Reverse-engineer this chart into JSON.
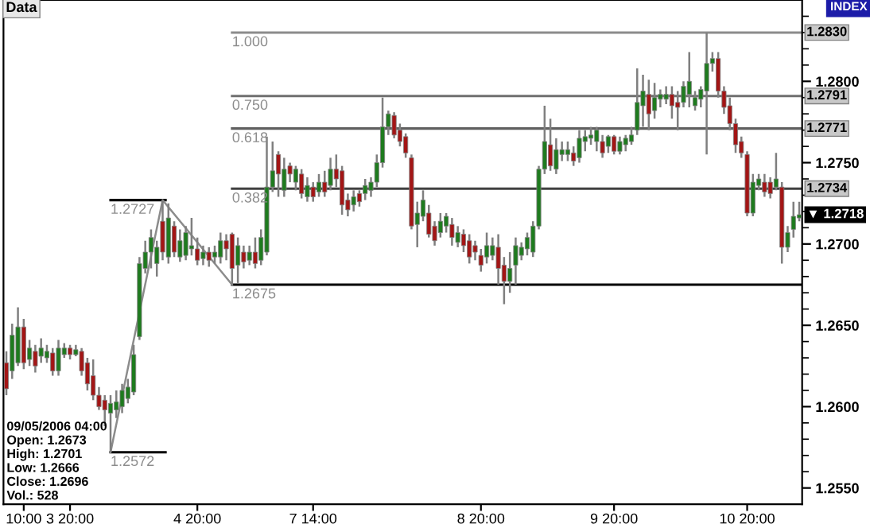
{
  "chart_data": {
    "type": "candlestick",
    "categories": [
      null,
      null,
      null,
      "10:00",
      null,
      null,
      null,
      null,
      null,
      null,
      null,
      "3 20:00",
      null,
      null,
      null,
      null,
      null,
      null,
      null,
      null,
      null,
      null,
      null,
      null,
      null,
      null,
      null,
      null,
      null,
      null,
      null,
      null,
      null,
      "4 20:00",
      null,
      null,
      null,
      null,
      null,
      null,
      null,
      null,
      null,
      null,
      null,
      null,
      null,
      null,
      null,
      null,
      null,
      null,
      null,
      "7 14:00",
      null,
      null,
      null,
      null,
      null,
      null,
      null,
      null,
      null,
      null,
      null,
      null,
      null,
      null,
      null,
      null,
      null,
      null,
      null,
      null,
      null,
      null,
      null,
      null,
      null,
      null,
      null,
      null,
      "8 20:00",
      null,
      null,
      null,
      null,
      null,
      null,
      null,
      null,
      null,
      null,
      null,
      null,
      null,
      null,
      null,
      null,
      null,
      null,
      null,
      null,
      null,
      null,
      "9 20:00",
      null,
      null,
      null,
      null,
      null,
      null,
      null,
      null,
      null,
      null,
      null,
      null,
      null,
      null,
      null,
      null,
      null,
      null,
      null,
      null,
      null,
      null,
      "10 20:00",
      null,
      null,
      null,
      null,
      null,
      null,
      null,
      null,
      null
    ],
    "ohlc": [
      [
        1.2627,
        1.2634,
        1.2607,
        1.2611
      ],
      [
        1.2622,
        1.2651,
        1.2617,
        1.2644
      ],
      [
        1.2627,
        1.2661,
        1.2625,
        1.2649
      ],
      [
        1.2649,
        1.2654,
        1.2623,
        1.2627
      ],
      [
        1.2629,
        1.2641,
        1.2625,
        1.2636
      ],
      [
        1.2634,
        1.2638,
        1.2621,
        1.2625
      ],
      [
        1.2631,
        1.2642,
        1.2627,
        1.2636
      ],
      [
        1.263,
        1.2638,
        1.2627,
        1.2634
      ],
      [
        1.2633,
        1.2636,
        1.2619,
        1.2622
      ],
      [
        1.2622,
        1.2641,
        1.2619,
        1.2636
      ],
      [
        1.2632,
        1.2639,
        1.263,
        1.2636
      ],
      [
        1.2636,
        1.2638,
        1.2629,
        1.2632
      ],
      [
        1.2632,
        1.2638,
        1.2631,
        1.2635
      ],
      [
        1.2634,
        1.2636,
        1.2619,
        1.2622
      ],
      [
        1.2627,
        1.263,
        1.261,
        1.2614
      ],
      [
        1.2619,
        1.2629,
        1.2604,
        1.2607
      ],
      [
        1.2607,
        1.2612,
        1.2598,
        1.26
      ],
      [
        1.2604,
        1.2607,
        1.2588,
        1.2598
      ],
      [
        1.2596,
        1.2607,
        1.2572,
        1.2602
      ],
      [
        1.2598,
        1.261,
        1.2593,
        1.2603
      ],
      [
        1.26,
        1.2614,
        1.2596,
        1.261
      ],
      [
        1.2605,
        1.2617,
        1.2602,
        1.2612
      ],
      [
        1.2609,
        1.2638,
        1.2607,
        1.2632
      ],
      [
        1.2643,
        1.2692,
        1.2641,
        1.2688
      ],
      [
        1.2685,
        1.2702,
        1.2682,
        1.2695
      ],
      [
        1.2695,
        1.2709,
        1.2685,
        1.2704
      ],
      [
        1.2688,
        1.2702,
        1.268,
        1.2698
      ],
      [
        1.2714,
        1.2727,
        1.269,
        1.2695
      ],
      [
        1.2692,
        1.2725,
        1.2688,
        1.2716
      ],
      [
        1.2711,
        1.2714,
        1.2692,
        1.2695
      ],
      [
        1.2692,
        1.2709,
        1.2689,
        1.2702
      ],
      [
        1.2693,
        1.2711,
        1.269,
        1.2707
      ],
      [
        1.2697,
        1.2716,
        1.2693,
        1.2699
      ],
      [
        1.2697,
        1.2704,
        1.2687,
        1.269
      ],
      [
        1.2691,
        1.2699,
        1.2687,
        1.2695
      ],
      [
        1.2695,
        1.2698,
        1.2686,
        1.269
      ],
      [
        1.2692,
        1.2699,
        1.2688,
        1.2695
      ],
      [
        1.2692,
        1.2707,
        1.2688,
        1.2702
      ],
      [
        1.2702,
        1.2706,
        1.269,
        1.2697
      ],
      [
        1.2706,
        1.2707,
        1.2675,
        1.2685
      ],
      [
        1.2687,
        1.2704,
        1.2676,
        1.2699
      ],
      [
        1.2695,
        1.2699,
        1.2685,
        1.2689
      ],
      [
        1.269,
        1.2699,
        1.2687,
        1.2695
      ],
      [
        1.2695,
        1.2704,
        1.2685,
        1.2688
      ],
      [
        1.269,
        1.2709,
        1.2687,
        1.2704
      ],
      [
        1.2695,
        1.2766,
        1.2693,
        1.2735
      ],
      [
        1.2735,
        1.2763,
        1.2732,
        1.2745
      ],
      [
        1.2755,
        1.2757,
        1.2729,
        1.2743
      ],
      [
        1.2733,
        1.2753,
        1.2729,
        1.2746
      ],
      [
        1.2748,
        1.275,
        1.2738,
        1.2743
      ],
      [
        1.2738,
        1.2748,
        1.2733,
        1.2746
      ],
      [
        1.2743,
        1.2746,
        1.2728,
        1.2731
      ],
      [
        1.2729,
        1.2741,
        1.2726,
        1.2736
      ],
      [
        1.2735,
        1.2738,
        1.2726,
        1.2729
      ],
      [
        1.2732,
        1.2743,
        1.2729,
        1.2738
      ],
      [
        1.2738,
        1.2745,
        1.2729,
        1.2732
      ],
      [
        1.2736,
        1.2753,
        1.2733,
        1.2746
      ],
      [
        1.2746,
        1.2755,
        1.2735,
        1.274
      ],
      [
        1.2745,
        1.2748,
        1.2718,
        1.2724
      ],
      [
        1.2727,
        1.2731,
        1.2717,
        1.2721
      ],
      [
        1.2724,
        1.2733,
        1.272,
        1.2729
      ],
      [
        1.2731,
        1.2733,
        1.2723,
        1.2726
      ],
      [
        1.2731,
        1.274,
        1.2727,
        1.2736
      ],
      [
        1.2733,
        1.2741,
        1.2729,
        1.2738
      ],
      [
        1.2738,
        1.2755,
        1.2735,
        1.275
      ],
      [
        1.275,
        1.279,
        1.2747,
        1.2772
      ],
      [
        1.2772,
        1.2782,
        1.2767,
        1.278
      ],
      [
        1.2779,
        1.2781,
        1.2765,
        1.2767
      ],
      [
        1.277,
        1.2774,
        1.276,
        1.2763
      ],
      [
        1.2766,
        1.2768,
        1.2753,
        1.2756
      ],
      [
        1.2753,
        1.2755,
        1.2709,
        1.2711
      ],
      [
        1.2712,
        1.2726,
        1.2698,
        1.2719
      ],
      [
        1.2717,
        1.2733,
        1.2714,
        1.2727
      ],
      [
        1.2719,
        1.2724,
        1.2704,
        1.2706
      ],
      [
        1.2711,
        1.2714,
        1.2699,
        1.2702
      ],
      [
        1.2707,
        1.2719,
        1.2704,
        1.2714
      ],
      [
        1.2711,
        1.2719,
        1.2707,
        1.2717
      ],
      [
        1.2712,
        1.2716,
        1.2699,
        1.2704
      ],
      [
        1.2701,
        1.2711,
        1.2698,
        1.2707
      ],
      [
        1.2706,
        1.2709,
        1.2695,
        1.2699
      ],
      [
        1.2702,
        1.2706,
        1.2688,
        1.2692
      ],
      [
        1.2699,
        1.2702,
        1.269,
        1.2695
      ],
      [
        1.2693,
        1.2697,
        1.2683,
        1.2687
      ],
      [
        1.2692,
        1.2707,
        1.2688,
        1.2699
      ],
      [
        1.2693,
        1.2704,
        1.269,
        1.2699
      ],
      [
        1.2698,
        1.2706,
        1.2675,
        1.2685
      ],
      [
        1.2687,
        1.2692,
        1.2663,
        1.2677
      ],
      [
        1.2677,
        1.2695,
        1.267,
        1.2685
      ],
      [
        1.2687,
        1.2704,
        1.2675,
        1.2699
      ],
      [
        1.2693,
        1.2701,
        1.269,
        1.2698
      ],
      [
        1.2697,
        1.2707,
        1.2693,
        1.2704
      ],
      [
        1.2695,
        1.2714,
        1.2692,
        1.2711
      ],
      [
        1.2711,
        1.2748,
        1.2709,
        1.2746
      ],
      [
        1.2746,
        1.2785,
        1.2743,
        1.2763
      ],
      [
        1.2761,
        1.2777,
        1.2745,
        1.2748
      ],
      [
        1.2746,
        1.2765,
        1.2743,
        1.2758
      ],
      [
        1.2755,
        1.2763,
        1.2751,
        1.2758
      ],
      [
        1.2755,
        1.2763,
        1.2751,
        1.2758
      ],
      [
        1.2756,
        1.276,
        1.2748,
        1.2751
      ],
      [
        1.2753,
        1.277,
        1.275,
        1.2765
      ],
      [
        1.2763,
        1.277,
        1.2757,
        1.2766
      ],
      [
        1.2765,
        1.2772,
        1.2761,
        1.2767
      ],
      [
        1.2763,
        1.2772,
        1.2757,
        1.277
      ],
      [
        1.2763,
        1.2767,
        1.2753,
        1.2756
      ],
      [
        1.276,
        1.2767,
        1.2756,
        1.2766
      ],
      [
        1.2766,
        1.2767,
        1.2755,
        1.2757
      ],
      [
        1.2757,
        1.2766,
        1.2755,
        1.2763
      ],
      [
        1.2761,
        1.2767,
        1.2757,
        1.2765
      ],
      [
        1.2763,
        1.2772,
        1.2761,
        1.2767
      ],
      [
        1.277,
        1.2808,
        1.2767,
        1.2787
      ],
      [
        1.2785,
        1.2804,
        1.2772,
        1.2794
      ],
      [
        1.2792,
        1.2801,
        1.277,
        1.278
      ],
      [
        1.2782,
        1.2799,
        1.2777,
        1.279
      ],
      [
        1.2789,
        1.2795,
        1.2784,
        1.2792
      ],
      [
        1.2789,
        1.2797,
        1.2786,
        1.2792
      ],
      [
        1.2792,
        1.2797,
        1.2777,
        1.2785
      ],
      [
        1.2787,
        1.2794,
        1.277,
        1.2784
      ],
      [
        1.2787,
        1.28,
        1.2784,
        1.2797
      ],
      [
        1.2792,
        1.2818,
        1.2784,
        1.28
      ],
      [
        1.2785,
        1.2794,
        1.2782,
        1.279
      ],
      [
        1.2789,
        1.2797,
        1.2784,
        1.2795
      ],
      [
        1.2794,
        1.283,
        1.2755,
        1.2811
      ],
      [
        1.2811,
        1.2818,
        1.2806,
        1.2814
      ],
      [
        1.2814,
        1.2818,
        1.279,
        1.2794
      ],
      [
        1.2794,
        1.2797,
        1.278,
        1.2784
      ],
      [
        1.2785,
        1.279,
        1.277,
        1.2774
      ],
      [
        1.2774,
        1.2777,
        1.2756,
        1.2761
      ],
      [
        1.2763,
        1.2766,
        1.2753,
        1.2756
      ],
      [
        1.2755,
        1.2757,
        1.2717,
        1.2719
      ],
      [
        1.2719,
        1.2743,
        1.2717,
        1.2738
      ],
      [
        1.2736,
        1.2743,
        1.2733,
        1.274
      ],
      [
        1.2738,
        1.2743,
        1.2729,
        1.2732
      ],
      [
        1.2738,
        1.2741,
        1.2728,
        1.2731
      ],
      [
        1.2735,
        1.2756,
        1.2733,
        1.274
      ],
      [
        1.2735,
        1.2738,
        1.2688,
        1.2698
      ],
      [
        1.2698,
        1.2711,
        1.2695,
        1.2707
      ],
      [
        1.2709,
        1.2726,
        1.2704,
        1.2717
      ],
      [
        1.2716,
        1.2726,
        1.2714,
        1.2718
      ]
    ],
    "colors": [
      "#a31515",
      "#1e7b1e",
      "#1e7b1e",
      "#a31515",
      "#1e7b1e",
      "#a31515",
      "#1e7b1e",
      "#1e7b1e",
      "#a31515",
      "#1e7b1e",
      "#1e7b1e",
      "#a31515",
      "#1e7b1e",
      "#a31515",
      "#a31515",
      "#a31515",
      "#a31515",
      "#a31515",
      "#1e7b1e",
      "#1e7b1e",
      "#1e7b1e",
      "#1e7b1e",
      "#1e7b1e",
      "#1e7b1e",
      "#1e7b1e",
      "#1e7b1e",
      "#1e7b1e",
      "#a31515",
      "#1e7b1e",
      "#a31515",
      "#1e7b1e",
      "#1e7b1e",
      "#1e7b1e",
      "#a31515",
      "#1e7b1e",
      "#a31515",
      "#1e7b1e",
      "#1e7b1e",
      "#a31515",
      "#a31515",
      "#1e7b1e",
      "#a31515",
      "#1e7b1e",
      "#a31515",
      "#1e7b1e",
      "#1e7b1e",
      "#1e7b1e",
      "#a31515",
      "#1e7b1e",
      "#a31515",
      "#1e7b1e",
      "#a31515",
      "#1e7b1e",
      "#a31515",
      "#1e7b1e",
      "#a31515",
      "#1e7b1e",
      "#a31515",
      "#a31515",
      "#a31515",
      "#1e7b1e",
      "#a31515",
      "#1e7b1e",
      "#1e7b1e",
      "#1e7b1e",
      "#1e7b1e",
      "#1e7b1e",
      "#a31515",
      "#a31515",
      "#a31515",
      "#a31515",
      "#1e7b1e",
      "#1e7b1e",
      "#a31515",
      "#a31515",
      "#1e7b1e",
      "#1e7b1e",
      "#a31515",
      "#1e7b1e",
      "#a31515",
      "#a31515",
      "#a31515",
      "#a31515",
      "#1e7b1e",
      "#1e7b1e",
      "#a31515",
      "#a31515",
      "#1e7b1e",
      "#1e7b1e",
      "#1e7b1e",
      "#1e7b1e",
      "#1e7b1e",
      "#1e7b1e",
      "#1e7b1e",
      "#a31515",
      "#1e7b1e",
      "#1e7b1e",
      "#1e7b1e",
      "#a31515",
      "#1e7b1e",
      "#1e7b1e",
      "#1e7b1e",
      "#1e7b1e",
      "#a31515",
      "#1e7b1e",
      "#a31515",
      "#1e7b1e",
      "#1e7b1e",
      "#1e7b1e",
      "#1e7b1e",
      "#1e7b1e",
      "#a31515",
      "#1e7b1e",
      "#1e7b1e",
      "#1e7b1e",
      "#a31515",
      "#a31515",
      "#1e7b1e",
      "#1e7b1e",
      "#1e7b1e",
      "#1e7b1e",
      "#1e7b1e",
      "#1e7b1e",
      "#a31515",
      "#a31515",
      "#a31515",
      "#a31515",
      "#a31515",
      "#a31515",
      "#1e7b1e",
      "#1e7b1e",
      "#a31515",
      "#a31515",
      "#1e7b1e",
      "#a31515",
      "#1e7b1e",
      "#1e7b1e",
      "#1e7b1e"
    ],
    "series": [
      {
        "type": "line",
        "color": "#8c8c8c",
        "values": [
          null,
          null,
          null,
          null,
          null,
          null,
          null,
          null,
          null,
          null,
          null,
          null,
          null,
          null,
          null,
          null,
          null,
          null,
          1.2572,
          null,
          null,
          null,
          null,
          null,
          null,
          null,
          null,
          1.2727,
          null,
          null,
          null,
          null,
          null,
          null,
          null,
          null,
          null,
          null,
          null,
          1.2675,
          null,
          null,
          null,
          null,
          null,
          null,
          null,
          null,
          null,
          null,
          null,
          null,
          null,
          null,
          null,
          null,
          null,
          null,
          null,
          null,
          null,
          null,
          null,
          null,
          null,
          null,
          null,
          null,
          null,
          null,
          null,
          null,
          null,
          null,
          null,
          null,
          null,
          null,
          null,
          null,
          null,
          null,
          null,
          null,
          null,
          null,
          null,
          null,
          null,
          null,
          null,
          null,
          null,
          null,
          null,
          null,
          null,
          null,
          null,
          null,
          null,
          null,
          null,
          null,
          null,
          null,
          null,
          null,
          null,
          null,
          null,
          null,
          null,
          null,
          null,
          null,
          null,
          null,
          null,
          null,
          null,
          null,
          null,
          null,
          null,
          null,
          null,
          null,
          null,
          null,
          null,
          null,
          null,
          null,
          null,
          null,
          null,
          null
        ]
      }
    ],
    "ylim": [
      1.254,
      1.285
    ],
    "yticks": [
      {
        "value": 1.255,
        "label": "1.2550"
      },
      {
        "value": 1.256,
        "label": null
      },
      {
        "value": 1.257,
        "label": null
      },
      {
        "value": 1.258,
        "label": null
      },
      {
        "value": 1.259,
        "label": null
      },
      {
        "value": 1.26,
        "label": "1.2600"
      },
      {
        "value": 1.261,
        "label": null
      },
      {
        "value": 1.262,
        "label": null
      },
      {
        "value": 1.263,
        "label": null
      },
      {
        "value": 1.264,
        "label": null
      },
      {
        "value": 1.265,
        "label": "1.2650"
      },
      {
        "value": 1.266,
        "label": null
      },
      {
        "value": 1.267,
        "label": null
      },
      {
        "value": 1.268,
        "label": null
      },
      {
        "value": 1.269,
        "label": null
      },
      {
        "value": 1.27,
        "label": "1.2700"
      },
      {
        "value": 1.271,
        "label": null
      },
      {
        "value": 1.272,
        "label": null
      },
      {
        "value": 1.273,
        "label": null
      },
      {
        "value": 1.274,
        "label": null
      },
      {
        "value": 1.275,
        "label": "1.2750"
      },
      {
        "value": 1.276,
        "label": null
      },
      {
        "value": 1.277,
        "label": null
      },
      {
        "value": 1.278,
        "label": null
      },
      {
        "value": 1.279,
        "label": null
      },
      {
        "value": 1.28,
        "label": "1.2800"
      },
      {
        "value": 1.281,
        "label": null
      },
      {
        "value": 1.282,
        "label": null
      },
      {
        "value": 1.283,
        "label": null
      },
      {
        "value": 1.284,
        "label": null
      }
    ],
    "ref_lines": [
      {
        "axis": "y",
        "value": 1.283,
        "label": "1.2830",
        "color": "#8c8c8c"
      },
      {
        "axis": "y",
        "value": 1.2791,
        "label": "1.2791",
        "color": "#707070"
      },
      {
        "axis": "y",
        "value": 1.2771,
        "label": "1.2771",
        "color": "#606060"
      },
      {
        "axis": "y",
        "value": 1.2734,
        "label": "1.2734",
        "color": "#404040"
      },
      {
        "axis": "y",
        "value": 1.2675,
        "label": "1.2675",
        "color": "#000000"
      },
      {
        "axis": "y",
        "value": 1.2727,
        "label": "1.2727",
        "color": "#000000"
      },
      {
        "axis": "y",
        "value": 1.2572,
        "label": "1.2572",
        "color": "#000000"
      }
    ],
    "annotations": [
      "Data",
      "INDEX",
      "1.000",
      "0.750",
      "0.618",
      "0.382",
      "▼ 1.2718",
      "09/05/2006 04:00\nOpen: 1.2673\nHigh: 1.2701\nLow: 1.2666\nClose: 1.2696\nVol.: 528"
    ]
  }
}
